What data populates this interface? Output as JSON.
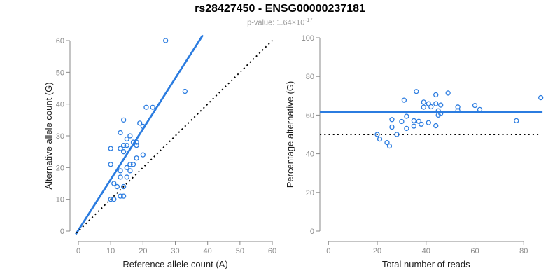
{
  "title": "rs28427450 - ENSG00000237181",
  "subtitle": {
    "label": "p-value:",
    "mantissa": "1.64×10",
    "exponent": "-17"
  },
  "colors": {
    "accent_blue": "#2b7ce0",
    "dotted_black": "#000000",
    "axis_gray": "#8a8a8a",
    "axis_title_dark": "#1c1c1c",
    "subtitle_gray": "#9b9b9b"
  },
  "chart_data": [
    {
      "type": "scatter",
      "panel": "left",
      "xlabel": "Reference allele count (A)",
      "ylabel": "Alternative allele count (G)",
      "xlim": [
        0,
        60
      ],
      "ylim": [
        0,
        60
      ],
      "xticks": [
        0,
        10,
        20,
        30,
        40,
        50,
        60
      ],
      "yticks": [
        0,
        10,
        20,
        30,
        40,
        50,
        60
      ],
      "grid": false,
      "legend": null,
      "points": [
        [
          27,
          60
        ],
        [
          33,
          44
        ],
        [
          21,
          39
        ],
        [
          23,
          39
        ],
        [
          14,
          35
        ],
        [
          19,
          34
        ],
        [
          20,
          33
        ],
        [
          13,
          31
        ],
        [
          16,
          30
        ],
        [
          15,
          29
        ],
        [
          17,
          28
        ],
        [
          18,
          28
        ],
        [
          18,
          27
        ],
        [
          14,
          27
        ],
        [
          15,
          27
        ],
        [
          10,
          26
        ],
        [
          13,
          26
        ],
        [
          14,
          25
        ],
        [
          20,
          24
        ],
        [
          18,
          23
        ],
        [
          10,
          21
        ],
        [
          16,
          21
        ],
        [
          17,
          21
        ],
        [
          15,
          20
        ],
        [
          13,
          19
        ],
        [
          16,
          19
        ],
        [
          13,
          17
        ],
        [
          15,
          17
        ],
        [
          11,
          15
        ],
        [
          12,
          14
        ],
        [
          14,
          14
        ],
        [
          13,
          11
        ],
        [
          14,
          11
        ],
        [
          10,
          10
        ],
        [
          11,
          10
        ]
      ],
      "lines": [
        {
          "name": "fit-line",
          "style": "solid",
          "color": "#2b7ce0",
          "slope_info": "y=1.6x",
          "from": [
            -0.8,
            -1.0
          ],
          "to": [
            38.5,
            61.7
          ]
        },
        {
          "name": "identity-line",
          "style": "dotted",
          "color": "#000000",
          "slope_info": "y=x",
          "from": [
            -0.6,
            -0.6
          ],
          "to": [
            60.3,
            60.3
          ]
        }
      ]
    },
    {
      "type": "scatter",
      "panel": "right",
      "xlabel": "Total number of reads",
      "ylabel": "Percentage alternative (G)",
      "xlim": [
        0,
        89
      ],
      "ylim": [
        0,
        100
      ],
      "xticks": [
        0,
        20,
        40,
        60,
        80
      ],
      "yticks": [
        0,
        20,
        40,
        60,
        80,
        100
      ],
      "grid": false,
      "legend": null,
      "points": [
        [
          87,
          69.0
        ],
        [
          77,
          57.1
        ],
        [
          60,
          65.0
        ],
        [
          62,
          62.9
        ],
        [
          49,
          71.4
        ],
        [
          53,
          64.2
        ],
        [
          53,
          62.3
        ],
        [
          44,
          70.5
        ],
        [
          46,
          65.2
        ],
        [
          44,
          65.9
        ],
        [
          45,
          62.2
        ],
        [
          46,
          60.9
        ],
        [
          45,
          60.0
        ],
        [
          41,
          65.9
        ],
        [
          42,
          64.3
        ],
        [
          36,
          72.2
        ],
        [
          39,
          66.7
        ],
        [
          39,
          64.1
        ],
        [
          44,
          54.5
        ],
        [
          41,
          56.1
        ],
        [
          31,
          67.7
        ],
        [
          37,
          56.8
        ],
        [
          38,
          55.3
        ],
        [
          35,
          57.1
        ],
        [
          32,
          59.4
        ],
        [
          35,
          54.3
        ],
        [
          30,
          56.7
        ],
        [
          32,
          53.1
        ],
        [
          26,
          57.7
        ],
        [
          26,
          53.8
        ],
        [
          28,
          50.0
        ],
        [
          24,
          45.8
        ],
        [
          25,
          44.0
        ],
        [
          20,
          50.0
        ],
        [
          21,
          47.6
        ]
      ],
      "lines": [
        {
          "name": "mean-percentage-line",
          "style": "solid",
          "color": "#2b7ce0",
          "value": 61.5,
          "from": [
            -3.5,
            61.5
          ],
          "to": [
            87.7,
            61.5
          ]
        },
        {
          "name": "fifty-percent-line",
          "style": "dotted",
          "color": "#000000",
          "value": 50,
          "from": [
            -3.5,
            50
          ],
          "to": [
            86,
            50
          ]
        }
      ]
    }
  ]
}
